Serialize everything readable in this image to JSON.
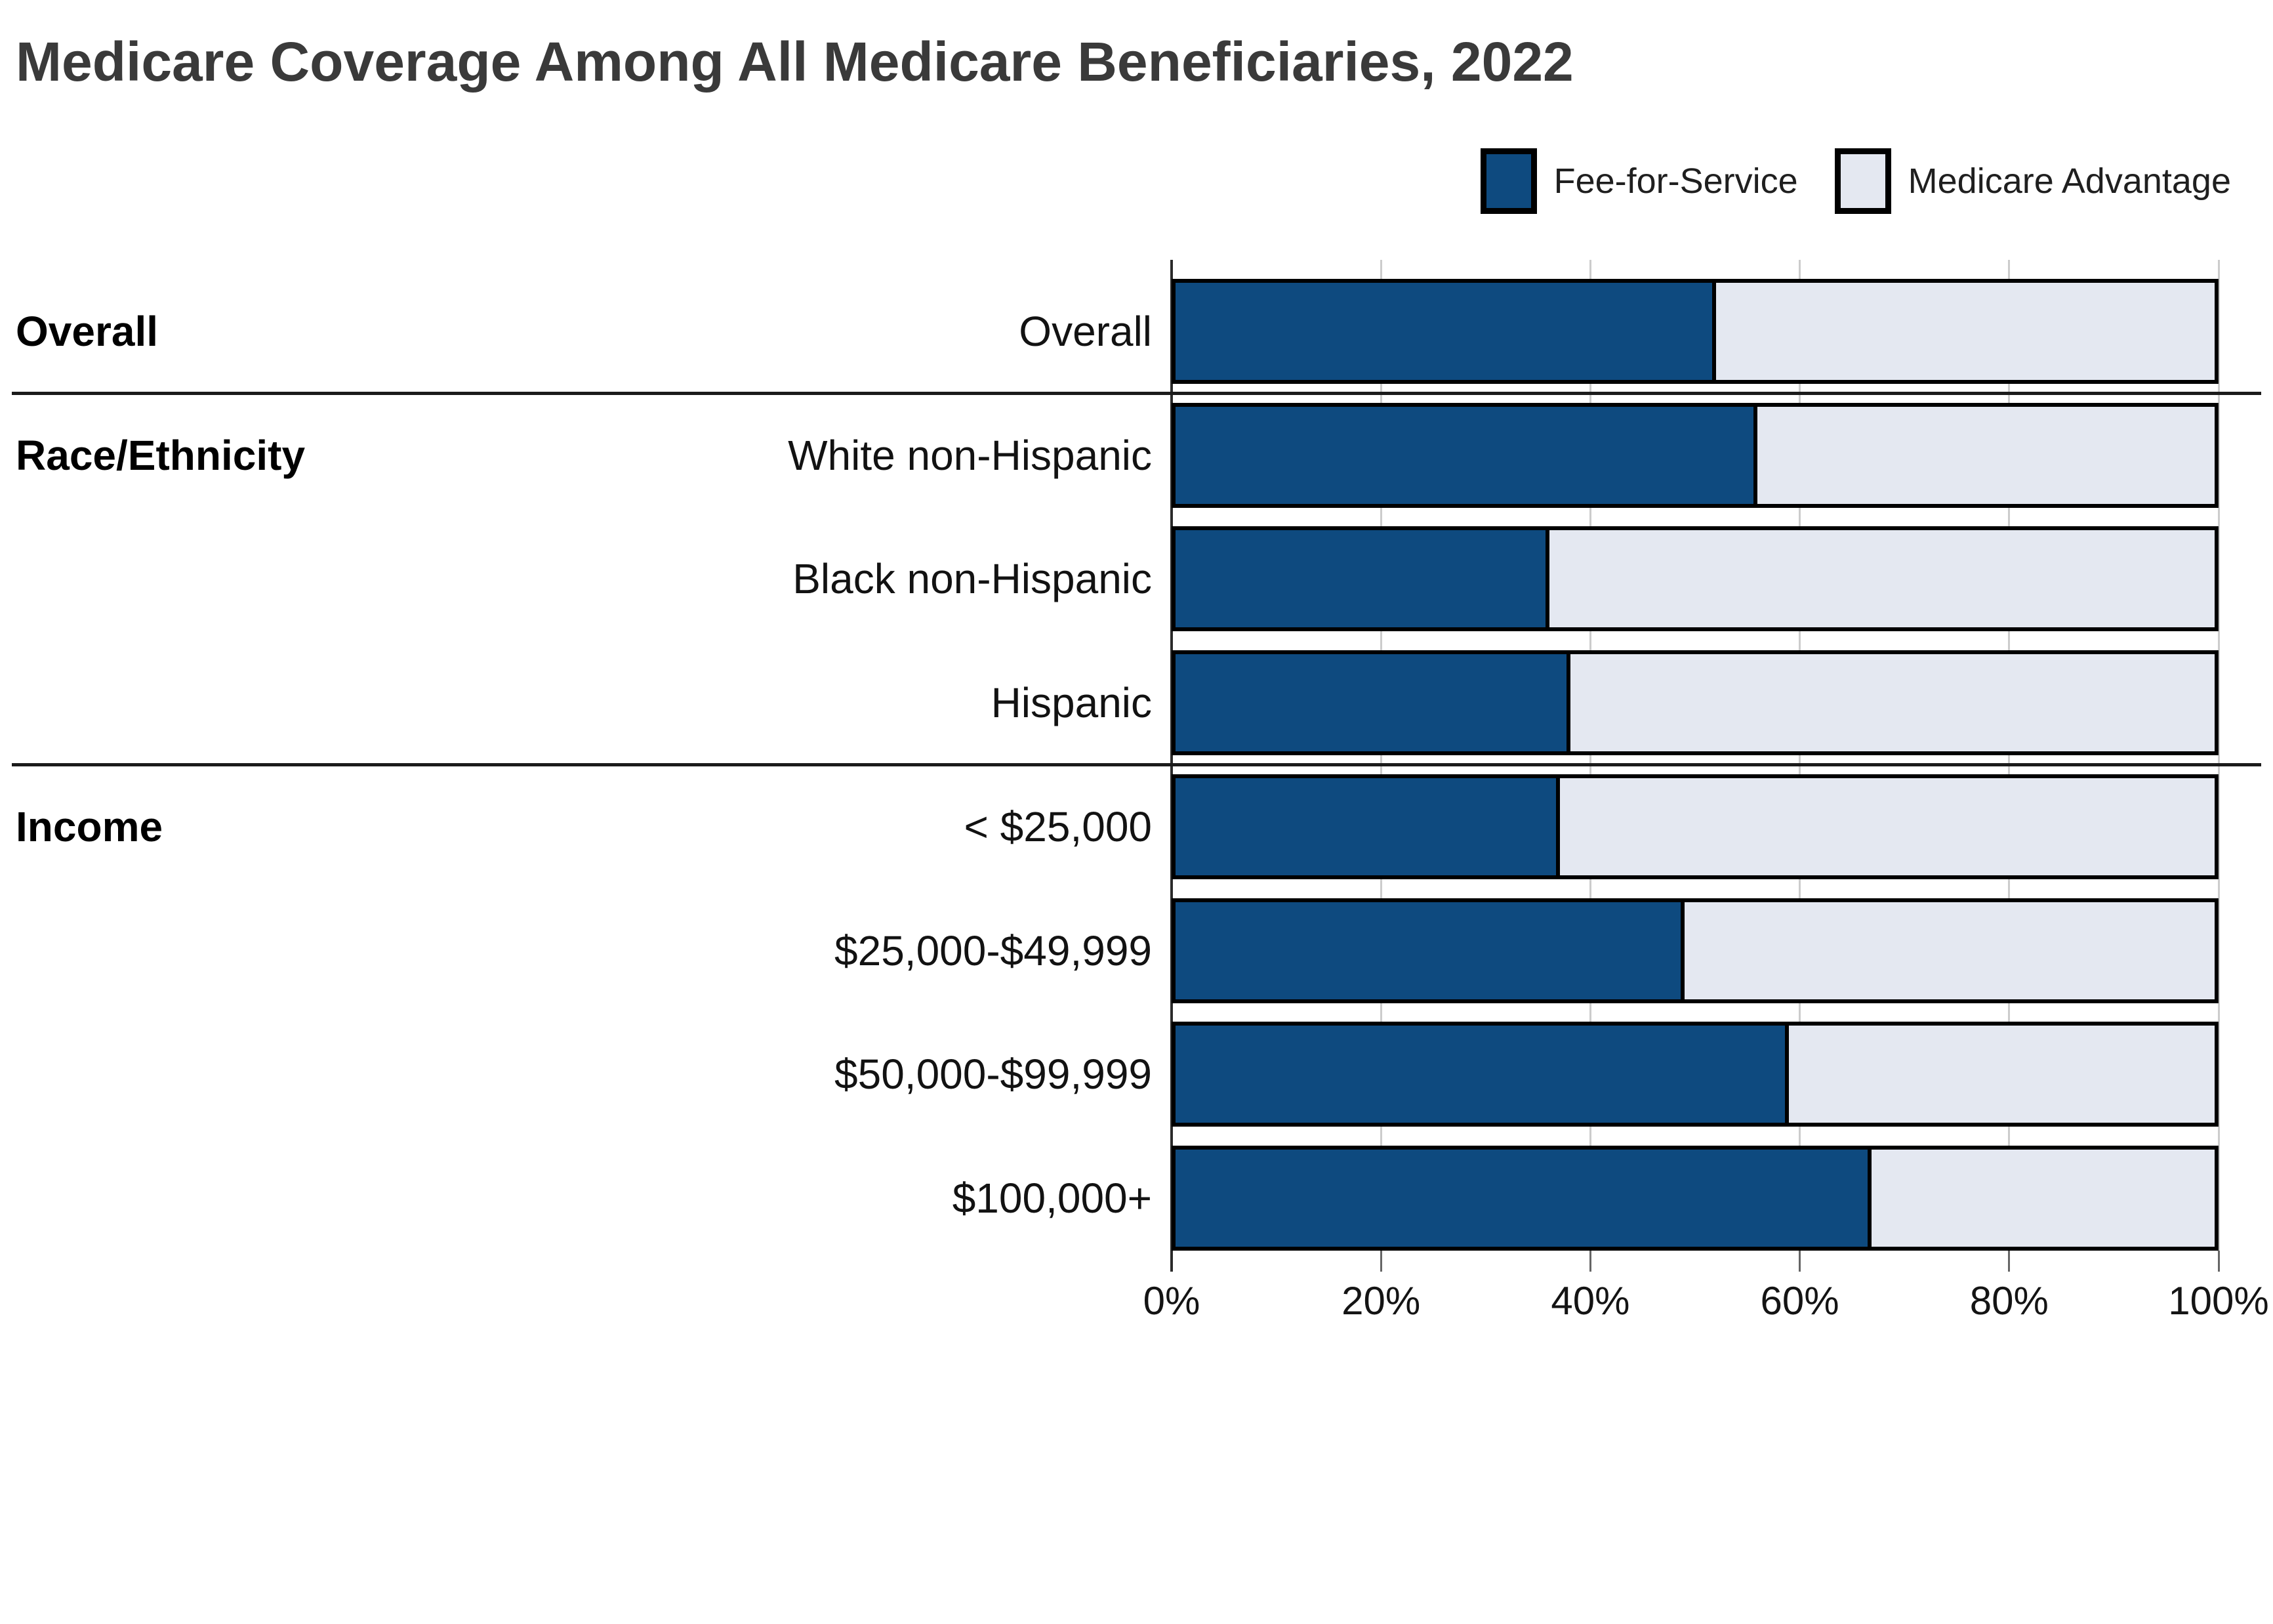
{
  "title": "Medicare Coverage Among All Medicare Beneficiaries, 2022",
  "legend": [
    {
      "label": "Fee-for-Service",
      "color": "#0E4A7F"
    },
    {
      "label": "Medicare Advantage",
      "color": "#E4E8F1"
    }
  ],
  "colors": {
    "fee_for_service": "#0E4A7F",
    "medicare_advantage": "#E4E8F1",
    "bar_border": "#000000",
    "gridline": "#CCCCCC",
    "axis": "#2B2B2B",
    "divider": "#1B1B1B",
    "title_text": "#3A3A3A",
    "label_text": "#121212"
  },
  "chart_data": {
    "type": "bar",
    "stacked": true,
    "orientation": "horizontal",
    "title": "Medicare Coverage Among All Medicare Beneficiaries, 2022",
    "xlabel": "",
    "ylabel": "",
    "xlim": [
      0,
      100
    ],
    "x_ticks": [
      "0%",
      "20%",
      "40%",
      "60%",
      "80%",
      "100%"
    ],
    "x_tick_values": [
      0,
      20,
      40,
      60,
      80,
      100
    ],
    "grid": "vertical",
    "legend_position": "top-right",
    "categories": [
      "Overall",
      "White non-Hispanic",
      "Black non-Hispanic",
      "Hispanic",
      "< $25,000",
      "$25,000-$49,999",
      "$50,000-$99,999",
      "$100,000+"
    ],
    "series": [
      {
        "name": "Fee-for-Service",
        "values": [
          52,
          56,
          36,
          38,
          37,
          49,
          59,
          67
        ]
      },
      {
        "name": "Medicare Advantage",
        "values": [
          48,
          44,
          64,
          62,
          63,
          51,
          41,
          33
        ]
      }
    ],
    "sections": [
      {
        "header": "Overall",
        "rows": [
          {
            "label": "Overall",
            "fee_for_service": 52,
            "medicare_advantage": 48
          }
        ]
      },
      {
        "header": "Race/Ethnicity",
        "rows": [
          {
            "label": "White non-Hispanic",
            "fee_for_service": 56,
            "medicare_advantage": 44
          },
          {
            "label": "Black non-Hispanic",
            "fee_for_service": 36,
            "medicare_advantage": 64
          },
          {
            "label": "Hispanic",
            "fee_for_service": 38,
            "medicare_advantage": 62
          }
        ]
      },
      {
        "header": "Income",
        "rows": [
          {
            "label": "< $25,000",
            "fee_for_service": 37,
            "medicare_advantage": 63
          },
          {
            "label": "$25,000-$49,999",
            "fee_for_service": 49,
            "medicare_advantage": 51
          },
          {
            "label": "$50,000-$99,999",
            "fee_for_service": 59,
            "medicare_advantage": 41
          },
          {
            "label": "$100,000+",
            "fee_for_service": 67,
            "medicare_advantage": 33
          }
        ]
      }
    ]
  }
}
